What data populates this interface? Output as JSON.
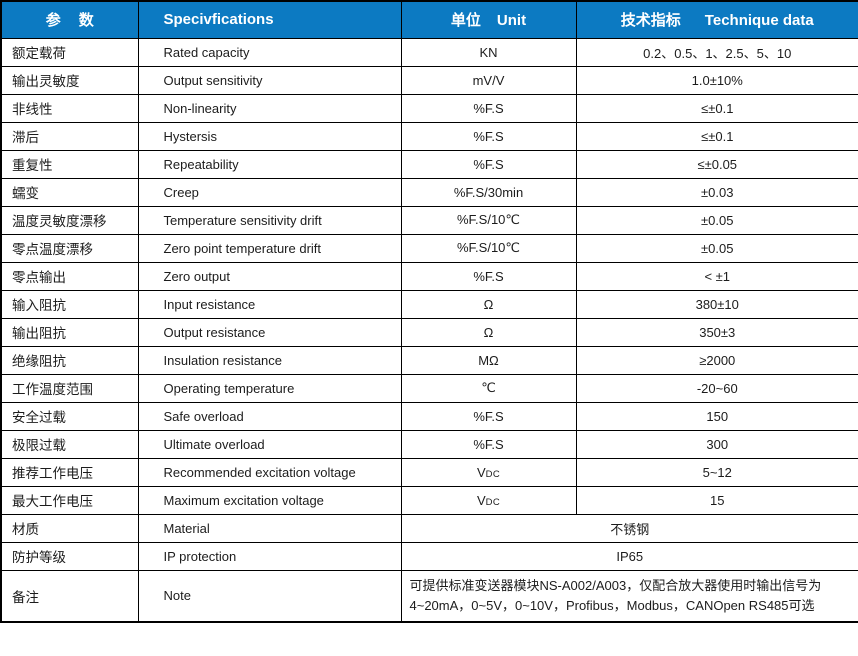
{
  "theme": {
    "header_bg": "#0c7ac2",
    "header_text": "#ffffff",
    "border_color": "#000000",
    "body_text": "#1c1c1c"
  },
  "header": {
    "param_zh_1": "参",
    "param_zh_2": "数",
    "specifications": "Specivfications",
    "unit_zh": "单位",
    "unit_en": "Unit",
    "tech_zh": "技术指标",
    "tech_en": "Technique data"
  },
  "rows": [
    {
      "zh": "额定载荷",
      "en": "Rated capacity",
      "unit": "KN",
      "value": "0.2、0.5、1、2.5、5、10"
    },
    {
      "zh": "输出灵敏度",
      "en": "Output sensitivity",
      "unit": "mV/V",
      "value": "1.0±10%"
    },
    {
      "zh": "非线性",
      "en": "Non-linearity",
      "unit": "%F.S",
      "value": "≤±0.1"
    },
    {
      "zh": "滞后",
      "en": "Hystersis",
      "unit": "%F.S",
      "value": "≤±0.1"
    },
    {
      "zh": "重复性",
      "en": "Repeatability",
      "unit": "%F.S",
      "value": "≤±0.05"
    },
    {
      "zh": "蠕变",
      "en": "Creep",
      "unit": "%F.S/30min",
      "value": "±0.03"
    },
    {
      "zh": "温度灵敏度漂移",
      "en": "Temperature sensitivity drift",
      "unit": "%F.S/10℃",
      "value": "±0.05"
    },
    {
      "zh": "零点温度漂移",
      "en": "Zero point temperature drift",
      "unit": "%F.S/10℃",
      "value": "±0.05"
    },
    {
      "zh": "零点输出",
      "en": "Zero output",
      "unit": "%F.S",
      "value": "< ±1"
    },
    {
      "zh": "输入阻抗",
      "en": "Input resistance",
      "unit": "Ω",
      "value": "380±10"
    },
    {
      "zh": "输出阻抗",
      "en": "Output resistance",
      "unit": "Ω",
      "value": "350±3"
    },
    {
      "zh": "绝缘阻抗",
      "en": "Insulation resistance",
      "unit": "MΩ",
      "value": "≥2000"
    },
    {
      "zh": "工作温度范围",
      "en": "Operating temperature",
      "unit": "℃",
      "value": "-20~60"
    },
    {
      "zh": "安全过载",
      "en": "Safe overload",
      "unit": "%F.S",
      "value": "150"
    },
    {
      "zh": "极限过载",
      "en": "Ultimate overload",
      "unit": "%F.S",
      "value": "300"
    },
    {
      "zh": "推荐工作电压",
      "en": "Recommended excitation voltage",
      "unit": "VDC",
      "value": "5~12"
    },
    {
      "zh": "最大工作电压",
      "en": "Maximum excitation voltage",
      "unit": "VDC",
      "value": "15"
    },
    {
      "zh": "材质",
      "en": "Material",
      "merged": "不锈钢"
    },
    {
      "zh": "防护等级",
      "en": "IP protection",
      "merged": "IP65"
    },
    {
      "zh": "备注",
      "en": "Note",
      "merged_lines": [
        "可提供标准变送器模块NS-A002/A003，仅配合放大器使用时输出信号为",
        "4~20mA，0~5V，0~10V，Profibus，Modbus，CANOpen RS485可选"
      ]
    }
  ]
}
